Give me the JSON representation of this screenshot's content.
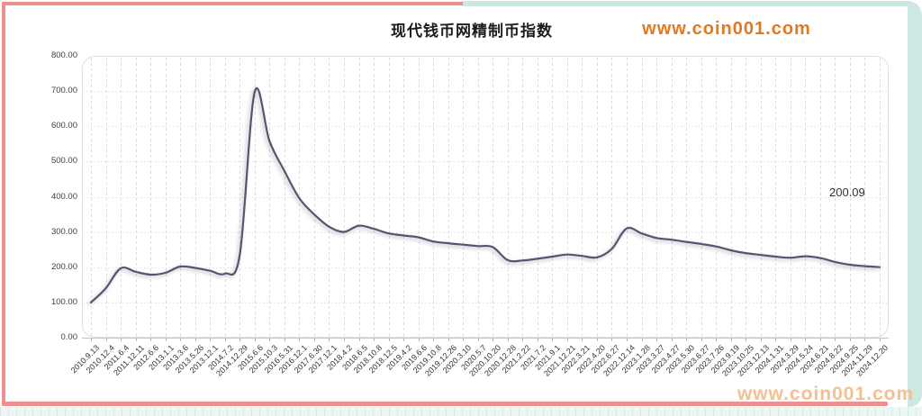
{
  "page": {
    "title": "现代钱币网精制币指数",
    "watermark_top": "www.coin001.com",
    "watermark_bottom": "www.coin001.com"
  },
  "colors": {
    "line": "#55566e",
    "line_shadow": "rgba(110,110,128,0.45)",
    "frame_pink": "#ee8f8f",
    "frame_teal": "#cde8e3",
    "grid_h": "#e3e3e3",
    "grid_v": "#dcdcdc",
    "axis": "#c4c4c4",
    "plot_border": "#dedede",
    "watermark_top": "#e2791f",
    "watermark_bottom": "#f5c091"
  },
  "chart_data": {
    "type": "line",
    "title": "现代钱币网精制币指数",
    "xlabel": "",
    "ylabel": "",
    "ylim": [
      0,
      800
    ],
    "ytick_step": 100,
    "ytick_labels": [
      "0.00",
      "100.00",
      "200.00",
      "300.00",
      "400.00",
      "500.00",
      "600.00",
      "700.00",
      "800.00"
    ],
    "grid": true,
    "legend": "none",
    "end_label": "200.09",
    "categories": [
      "2010.9.13",
      "2010.12.4",
      "2011.6.4",
      "2011.12.11",
      "2012.6.6",
      "2013.1.1",
      "2013.3.6",
      "2013.5.26",
      "2013.12.1",
      "2014.7.2",
      "2014.12.29",
      "2015.6.6",
      "2015.10.3",
      "2016.5.31",
      "2016.12.1",
      "2017.6.30",
      "2017.12.1",
      "2018.4.2",
      "2018.6.5",
      "2018.10.8",
      "2018.12.5",
      "2019.4.2",
      "2019.6.6",
      "2019.10.8",
      "2019.12.26",
      "2020.3.10",
      "2020.5.7",
      "2020.10.20",
      "2020.12.28",
      "2021.2.22",
      "2021.7.2",
      "2021.9.1",
      "2021.12.21",
      "2022.3.21",
      "2022.4.20",
      "2022.6.27",
      "2022.12.14",
      "2023.1.28",
      "2023.3.27",
      "2023.4.27",
      "2023.5.30",
      "2023.6.27",
      "2023.7.26",
      "2023.9.19",
      "2023.10.25",
      "2023.12.13",
      "2024.1.31",
      "2024.3.29",
      "2024.5.24",
      "2024.6.21",
      "2024.8.22",
      "2024.9.25",
      "2024.11.29",
      "2024.12.20"
    ],
    "values": [
      100,
      140,
      197,
      187,
      179,
      184,
      202,
      198,
      190,
      182,
      235,
      697,
      558,
      473,
      396,
      350,
      315,
      300,
      318,
      309,
      296,
      290,
      285,
      273,
      268,
      264,
      260,
      257,
      220,
      219,
      224,
      230,
      236,
      232,
      228,
      252,
      310,
      296,
      283,
      278,
      272,
      266,
      259,
      248,
      240,
      235,
      230,
      227,
      231,
      226,
      215,
      207,
      203,
      200.09
    ]
  }
}
